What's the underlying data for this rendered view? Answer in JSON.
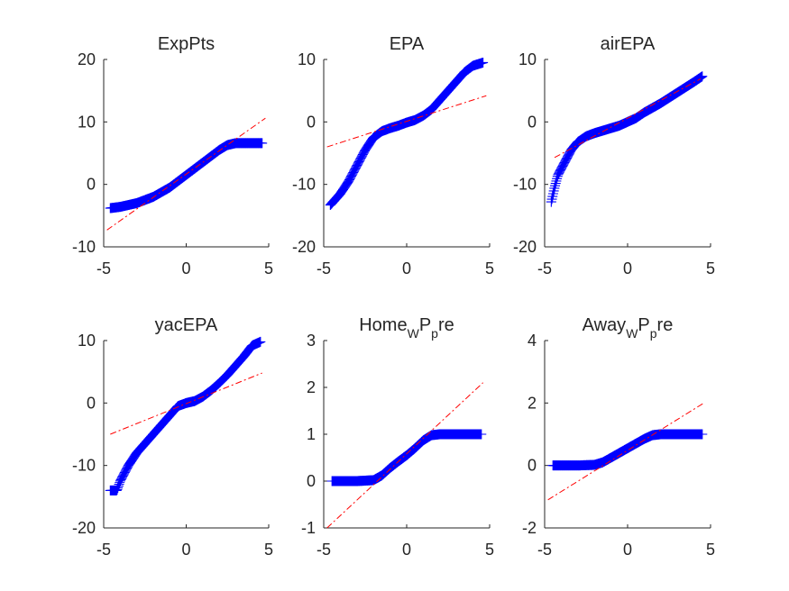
{
  "chart_data": [
    {
      "type": "scatter",
      "title": "ExpPts",
      "xlim": [
        -5,
        5
      ],
      "ylim": [
        -10,
        20
      ],
      "xticks": [
        -5,
        0,
        5
      ],
      "yticks": [
        -10,
        0,
        10,
        20
      ],
      "grid": false,
      "series": [
        {
          "kind": "qq-points",
          "color": "#0000ff",
          "marker": "+",
          "x": [
            -4.6,
            -4.0,
            -3.0,
            -2.0,
            -1.0,
            0.0,
            1.0,
            2.0,
            2.5,
            3.0,
            4.0,
            4.6
          ],
          "y": [
            -3.8,
            -3.6,
            -3.0,
            -2.0,
            -0.5,
            1.5,
            3.5,
            5.5,
            6.3,
            6.6,
            6.6,
            6.6
          ]
        },
        {
          "kind": "reference-line",
          "color": "#ff0000",
          "style": "dash-dot",
          "x": [
            -4.8,
            4.8
          ],
          "y": [
            -7.3,
            10.6
          ]
        }
      ]
    },
    {
      "type": "scatter",
      "title": "EPA",
      "xlim": [
        -5,
        5
      ],
      "ylim": [
        -20,
        10
      ],
      "xticks": [
        -5,
        0,
        5
      ],
      "yticks": [
        -20,
        -10,
        0,
        10
      ],
      "grid": false,
      "series": [
        {
          "kind": "qq-points",
          "color": "#0000ff",
          "marker": "+",
          "x": [
            -4.6,
            -4.0,
            -3.5,
            -3.0,
            -2.5,
            -2.0,
            -1.5,
            -1.0,
            -0.5,
            0.0,
            0.5,
            1.0,
            1.5,
            2.0,
            2.5,
            3.0,
            3.5,
            4.0,
            4.6
          ],
          "y": [
            -13.3,
            -11.5,
            -9.5,
            -7.0,
            -4.5,
            -2.5,
            -1.5,
            -1.0,
            -0.6,
            -0.1,
            0.3,
            1.0,
            2.0,
            3.5,
            5.0,
            6.5,
            8.0,
            9.0,
            9.5
          ]
        },
        {
          "kind": "reference-line",
          "color": "#ff0000",
          "style": "dash-dot",
          "x": [
            -4.8,
            4.8
          ],
          "y": [
            -4.0,
            4.2
          ]
        }
      ]
    },
    {
      "type": "scatter",
      "title": "airEPA",
      "xlim": [
        -5,
        5
      ],
      "ylim": [
        -20,
        10
      ],
      "xticks": [
        -5,
        0,
        5
      ],
      "yticks": [
        -20,
        -10,
        0,
        10
      ],
      "grid": false,
      "series": [
        {
          "kind": "qq-points",
          "color": "#0000ff",
          "marker": "+",
          "x": [
            -4.6,
            -4.4,
            -4.2,
            -4.0,
            -3.7,
            -3.4,
            -3.0,
            -2.5,
            -2.0,
            -1.5,
            -1.0,
            -0.5,
            0.0,
            0.5,
            1.0,
            2.0,
            3.0,
            4.0,
            4.5
          ],
          "y": [
            -12.8,
            -10.5,
            -8.5,
            -7.5,
            -6.0,
            -4.5,
            -3.2,
            -2.3,
            -1.8,
            -1.4,
            -1.0,
            -0.6,
            0.0,
            0.6,
            1.5,
            3.0,
            4.7,
            6.4,
            7.3
          ]
        },
        {
          "kind": "reference-line",
          "color": "#ff0000",
          "style": "dash-dot",
          "x": [
            -4.4,
            4.4
          ],
          "y": [
            -5.7,
            6.9
          ]
        }
      ]
    },
    {
      "type": "scatter",
      "title": "yacEPA",
      "xlim": [
        -5,
        5
      ],
      "ylim": [
        -20,
        10
      ],
      "xticks": [
        -5,
        0,
        5
      ],
      "yticks": [
        -20,
        -10,
        0,
        10
      ],
      "grid": false,
      "series": [
        {
          "kind": "qq-points",
          "color": "#0000ff",
          "marker": "+",
          "x": [
            -4.6,
            -4.2,
            -4.0,
            -3.5,
            -3.0,
            -2.5,
            -2.0,
            -1.5,
            -1.0,
            -0.5,
            0.0,
            0.5,
            1.0,
            1.5,
            2.0,
            2.5,
            3.0,
            3.5,
            4.0,
            4.5
          ],
          "y": [
            -14.0,
            -14.0,
            -12.5,
            -10.0,
            -8.0,
            -6.5,
            -5.0,
            -3.5,
            -2.0,
            -0.5,
            0.0,
            0.3,
            1.0,
            2.0,
            3.2,
            4.5,
            6.0,
            7.5,
            9.2,
            9.8
          ]
        },
        {
          "kind": "reference-line",
          "color": "#ff0000",
          "style": "dash-dot",
          "x": [
            -4.6,
            4.6
          ],
          "y": [
            -5.0,
            4.8
          ]
        }
      ]
    },
    {
      "type": "scatter",
      "title": "Home",
      "title_sub_1": "W",
      "title_mid": "P",
      "title_sub_2": "p",
      "title_end": "re",
      "xlim": [
        -5,
        5
      ],
      "ylim": [
        -1,
        3
      ],
      "xticks": [
        -5,
        0,
        5
      ],
      "yticks": [
        -1,
        0,
        1,
        2,
        3
      ],
      "grid": false,
      "series": [
        {
          "kind": "qq-points",
          "color": "#0000ff",
          "marker": "+",
          "x": [
            -4.5,
            -3.0,
            -2.0,
            -1.5,
            -1.0,
            -0.5,
            0.0,
            0.5,
            1.0,
            1.5,
            2.0,
            3.0,
            4.5
          ],
          "y": [
            0.0,
            0.0,
            0.02,
            0.12,
            0.28,
            0.42,
            0.55,
            0.7,
            0.87,
            0.98,
            1.0,
            1.0,
            1.0
          ]
        },
        {
          "kind": "reference-line",
          "color": "#ff0000",
          "style": "dash-dot",
          "x": [
            -4.8,
            4.6
          ],
          "y": [
            -1.0,
            2.1
          ]
        }
      ]
    },
    {
      "type": "scatter",
      "title": "Away",
      "title_sub_1": "W",
      "title_mid": "P",
      "title_sub_2": "p",
      "title_end": "re",
      "xlim": [
        -5,
        5
      ],
      "ylim": [
        -2,
        4
      ],
      "xticks": [
        -5,
        0,
        5
      ],
      "yticks": [
        -2,
        0,
        2,
        4
      ],
      "grid": false,
      "series": [
        {
          "kind": "qq-points",
          "color": "#0000ff",
          "marker": "+",
          "x": [
            -4.5,
            -3.0,
            -2.0,
            -1.5,
            -1.0,
            -0.5,
            0.0,
            0.5,
            1.0,
            1.5,
            2.0,
            3.0,
            4.5
          ],
          "y": [
            0.0,
            0.0,
            0.02,
            0.1,
            0.25,
            0.4,
            0.55,
            0.7,
            0.85,
            0.97,
            1.0,
            1.0,
            1.0
          ]
        },
        {
          "kind": "reference-line",
          "color": "#ff0000",
          "style": "dash-dot",
          "x": [
            -4.8,
            4.6
          ],
          "y": [
            -1.1,
            2.0
          ]
        }
      ]
    }
  ]
}
